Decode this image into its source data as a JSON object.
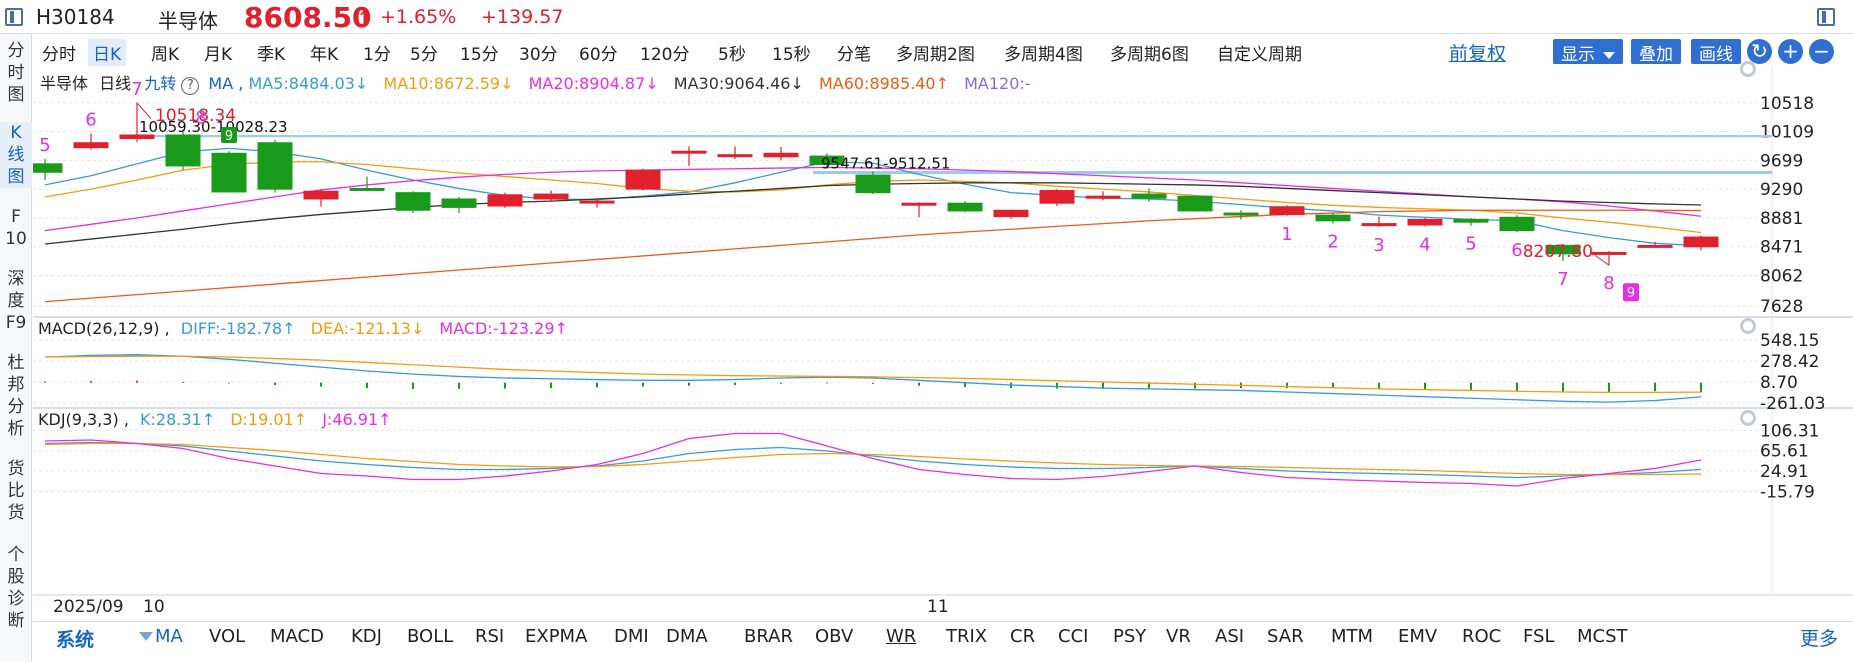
{
  "header": {
    "code": "H30184",
    "name": "半导体",
    "price": "8608.50",
    "pct_change": "+1.65%",
    "abs_change": "+139.57",
    "up_color": "#e0202c"
  },
  "left_tabs": [
    {
      "label": "分\n时\n图"
    },
    {
      "label": "K\n线\n图"
    },
    {
      "label": "F\n10"
    },
    {
      "label": "深\n度\nF9"
    },
    {
      "label": "杜\n邦\n分\n析"
    },
    {
      "label": "货\n比\n货"
    },
    {
      "label": "个\n股\n诊\n断"
    }
  ],
  "period_tabs": [
    "分时",
    "日K",
    "周K",
    "月K",
    "季K",
    "年K",
    "1分",
    "5分",
    "15分",
    "30分",
    "60分",
    "120分",
    "5秒",
    "15秒",
    "分笔",
    "多周期2图",
    "多周期4图",
    "多周期6图",
    "自定义周期"
  ],
  "active_period": "日K",
  "toolbar": {
    "fuquan": "前复权",
    "display": "显示",
    "overlay": "叠加",
    "draw": "画线",
    "refresh_icon": "↻",
    "zoom_in_icon": "+",
    "zoom_out_icon": "−"
  },
  "ma_legend": {
    "name": "半导体",
    "period": "日线",
    "jiuzhuan": "九转",
    "help": "?",
    "ma": "MA ,",
    "ma5": "MA5:8484.03↓",
    "ma10": "MA10:8672.59↓",
    "ma20": "MA20:8904.87↓",
    "ma30": "MA30:9064.46↓",
    "ma60": "MA60:8985.40↑",
    "ma120": "MA120:-"
  },
  "macd_legend": {
    "name": "MACD(26,12,9) ,",
    "diff": "DIFF:-182.78↑",
    "dea": "DEA:-121.13↓",
    "macd": "MACD:-123.29↑"
  },
  "kdj_legend": {
    "name": "KDJ(9,3,3) ,",
    "k": "K:28.31↑",
    "d": "D:19.01↑",
    "j": "J:46.91↑"
  },
  "price_axis": [
    "10518",
    "10109",
    "9699",
    "9290",
    "8881",
    "8471",
    "8062",
    "7628"
  ],
  "macd_axis": [
    "548.15",
    "278.42",
    "8.70",
    "-261.03"
  ],
  "kdj_axis": [
    "106.31",
    "65.61",
    "24.91",
    "-15.79"
  ],
  "annotations": {
    "high": "10518.34",
    "hline1": "10059.30-10028.23",
    "hline2": "9547.61-9512.51",
    "low": "8207.80"
  },
  "dates": {
    "d1": "2025/09",
    "d2": "10",
    "d3": "11"
  },
  "indicator_tabs": [
    "MA",
    "VOL",
    "MACD",
    "KDJ",
    "BOLL",
    "RSI",
    "EXPMA",
    "DMI",
    "DMA",
    "BRAR",
    "OBV",
    "WR",
    "TRIX",
    "CR",
    "CCI",
    "PSY",
    "VR",
    "ASI",
    "SAR",
    "MTM",
    "EMV",
    "ROC",
    "FSL",
    "MCST"
  ],
  "system_label": "系统",
  "more_label": "更多",
  "colors": {
    "up": "#e0202c",
    "down": "#1a9a1a",
    "ma5": "#3a9ad9",
    "ma10": "#f39c12",
    "ma20": "#e62ee6",
    "ma30": "#333333",
    "ma60": "#f05a1a",
    "ma120": "#8a6ad0",
    "accent": "#1565c0",
    "nine_count": "#e62ee6"
  },
  "chart_data": {
    "type": "candlestick",
    "candles": [
      {
        "o": 9650,
        "c": 9530,
        "h": 9720,
        "l": 9420
      },
      {
        "o": 9880,
        "c": 9950,
        "h": 10080,
        "l": 9850
      },
      {
        "o": 10010,
        "c": 10060,
        "h": 10518.34,
        "l": 9960
      },
      {
        "o": 10060,
        "c": 9620,
        "h": 10110,
        "l": 9560
      },
      {
        "o": 9800,
        "c": 9250,
        "h": 9830,
        "l": 9240
      },
      {
        "o": 9950,
        "c": 9290,
        "h": 9990,
        "l": 9240
      },
      {
        "o": 9150,
        "c": 9260,
        "h": 9290,
        "l": 9040
      },
      {
        "o": 9300,
        "c": 9290,
        "h": 9470,
        "l": 9270
      },
      {
        "o": 9240,
        "c": 8990,
        "h": 9260,
        "l": 8950
      },
      {
        "o": 9150,
        "c": 9030,
        "h": 9180,
        "l": 8950
      },
      {
        "o": 9050,
        "c": 9210,
        "h": 9240,
        "l": 9020
      },
      {
        "o": 9150,
        "c": 9220,
        "h": 9270,
        "l": 9120
      },
      {
        "o": 9110,
        "c": 9120,
        "h": 9160,
        "l": 9030
      },
      {
        "o": 9290,
        "c": 9560,
        "h": 9580,
        "l": 9270
      },
      {
        "o": 9830,
        "c": 9830,
        "h": 9900,
        "l": 9620
      },
      {
        "o": 9760,
        "c": 9780,
        "h": 9900,
        "l": 9720
      },
      {
        "o": 9750,
        "c": 9800,
        "h": 9890,
        "l": 9700
      },
      {
        "o": 9760,
        "c": 9640,
        "h": 9800,
        "l": 9580
      },
      {
        "o": 9490,
        "c": 9240,
        "h": 9540,
        "l": 9220
      },
      {
        "o": 9090,
        "c": 9090,
        "h": 9100,
        "l": 8890
      },
      {
        "o": 9090,
        "c": 8980,
        "h": 9120,
        "l": 8960
      },
      {
        "o": 8900,
        "c": 8990,
        "h": 9000,
        "l": 8870
      },
      {
        "o": 9090,
        "c": 9270,
        "h": 9290,
        "l": 9050
      },
      {
        "o": 9190,
        "c": 9190,
        "h": 9260,
        "l": 9130
      },
      {
        "o": 9220,
        "c": 9160,
        "h": 9300,
        "l": 9110
      },
      {
        "o": 9190,
        "c": 8980,
        "h": 9200,
        "l": 8970
      },
      {
        "o": 8950,
        "c": 8930,
        "h": 8990,
        "l": 8860
      },
      {
        "o": 8930,
        "c": 9040,
        "h": 9060,
        "l": 8910
      },
      {
        "o": 8920,
        "c": 8840,
        "h": 8950,
        "l": 8800
      },
      {
        "o": 8800,
        "c": 8800,
        "h": 8900,
        "l": 8750
      },
      {
        "o": 8780,
        "c": 8860,
        "h": 8880,
        "l": 8760
      },
      {
        "o": 8860,
        "c": 8820,
        "h": 8880,
        "l": 8770
      },
      {
        "o": 8890,
        "c": 8700,
        "h": 8920,
        "l": 8680
      },
      {
        "o": 8490,
        "c": 8370,
        "h": 8510,
        "l": 8270
      },
      {
        "o": 8390,
        "c": 8390,
        "h": 8410,
        "l": 8207.8
      },
      {
        "o": 8480,
        "c": 8490,
        "h": 8540,
        "l": 8470
      },
      {
        "o": 8470,
        "c": 8608.5,
        "h": 8630,
        "l": 8420
      }
    ],
    "ma_lines": {
      "MA5": [
        9350,
        9480,
        9650,
        9820,
        9870,
        9820,
        9720,
        9560,
        9420,
        9300,
        9200,
        9150,
        9140,
        9190,
        9250,
        9380,
        9530,
        9680,
        9660,
        9500,
        9360,
        9240,
        9200,
        9160,
        9150,
        9120,
        9070,
        9020,
        8980,
        8920,
        8890,
        8860,
        8840,
        8700,
        8600,
        8520,
        8484
      ],
      "MA10": [
        9180,
        9290,
        9420,
        9560,
        9640,
        9680,
        9680,
        9640,
        9580,
        9520,
        9470,
        9420,
        9370,
        9300,
        9260,
        9250,
        9280,
        9350,
        9400,
        9420,
        9400,
        9380,
        9330,
        9290,
        9250,
        9200,
        9150,
        9100,
        9060,
        9030,
        9010,
        8990,
        8950,
        8880,
        8820,
        8750,
        8673
      ],
      "MA20": [
        8700,
        8790,
        8880,
        8980,
        9080,
        9180,
        9280,
        9350,
        9410,
        9460,
        9500,
        9530,
        9550,
        9560,
        9570,
        9580,
        9590,
        9600,
        9590,
        9580,
        9560,
        9540,
        9510,
        9480,
        9450,
        9420,
        9380,
        9340,
        9300,
        9260,
        9220,
        9180,
        9150,
        9110,
        9050,
        8980,
        8905
      ],
      "MA30": [
        8510,
        8580,
        8650,
        8720,
        8800,
        8870,
        8930,
        8980,
        9030,
        9070,
        9100,
        9120,
        9150,
        9180,
        9220,
        9260,
        9300,
        9340,
        9360,
        9370,
        9380,
        9380,
        9380,
        9370,
        9360,
        9350,
        9330,
        9300,
        9270,
        9240,
        9210,
        9180,
        9150,
        9120,
        9100,
        9080,
        9064
      ],
      "MA60": [
        7690,
        7740,
        7790,
        7840,
        7890,
        7940,
        7990,
        8040,
        8090,
        8140,
        8190,
        8240,
        8290,
        8340,
        8390,
        8440,
        8490,
        8540,
        8590,
        8640,
        8680,
        8720,
        8760,
        8800,
        8840,
        8870,
        8900,
        8930,
        8950,
        8970,
        8980,
        8990,
        8990,
        8990,
        8990,
        8990,
        8985
      ]
    },
    "macd": {
      "diff": [
        330,
        350,
        360,
        340,
        300,
        250,
        200,
        150,
        110,
        80,
        60,
        50,
        40,
        30,
        30,
        40,
        60,
        70,
        60,
        30,
        0,
        -30,
        -50,
        -70,
        -80,
        -90,
        -100,
        -120,
        -140,
        -160,
        -180,
        -200,
        -220,
        -240,
        -250,
        -230,
        -182.78
      ],
      "dea": [
        330,
        335,
        340,
        340,
        330,
        310,
        290,
        260,
        230,
        200,
        170,
        150,
        130,
        110,
        100,
        90,
        85,
        80,
        75,
        65,
        55,
        40,
        25,
        10,
        -5,
        -20,
        -35,
        -50,
        -65,
        -80,
        -90,
        -100,
        -110,
        -120,
        -125,
        -125,
        -121.13
      ],
      "bar": [
        15,
        20,
        25,
        10,
        -10,
        -30,
        -50,
        -70,
        -80,
        -80,
        -75,
        -70,
        -60,
        -50,
        -40,
        -30,
        -15,
        -10,
        -15,
        -40,
        -55,
        -70,
        -75,
        -80,
        -80,
        -75,
        -70,
        -70,
        -75,
        -80,
        -90,
        -100,
        -110,
        -120,
        -125,
        -110,
        -123.29
      ]
    },
    "kdj": {
      "k": [
        80,
        82,
        80,
        75,
        65,
        55,
        45,
        38,
        32,
        28,
        28,
        30,
        35,
        45,
        60,
        68,
        72,
        65,
        55,
        45,
        38,
        33,
        30,
        30,
        32,
        35,
        30,
        25,
        22,
        20,
        18,
        15,
        12,
        15,
        18,
        22,
        28.31
      ],
      "d": [
        78,
        80,
        80,
        78,
        72,
        66,
        58,
        50,
        44,
        38,
        35,
        33,
        34,
        38,
        45,
        52,
        58,
        60,
        58,
        54,
        49,
        45,
        41,
        38,
        36,
        35,
        34,
        32,
        30,
        28,
        26,
        23,
        20,
        18,
        18,
        18,
        19.01
      ],
      "j": [
        85,
        87,
        80,
        70,
        50,
        35,
        20,
        15,
        8,
        8,
        15,
        25,
        38,
        60,
        90,
        100,
        100,
        75,
        50,
        28,
        18,
        10,
        8,
        14,
        24,
        35,
        22,
        12,
        8,
        5,
        2,
        0,
        -5,
        10,
        20,
        30,
        46.91
      ]
    },
    "nine_turn_up": [
      "5",
      "6",
      "7",
      "8",
      "9"
    ],
    "nine_turn_down": [
      "1",
      "2",
      "3",
      "4",
      "5",
      "6",
      "7",
      "8",
      "9"
    ],
    "price_range": [
      7500,
      10700
    ],
    "macd_range": [
      -300,
      600
    ],
    "kdj_range": [
      -25,
      115
    ]
  }
}
